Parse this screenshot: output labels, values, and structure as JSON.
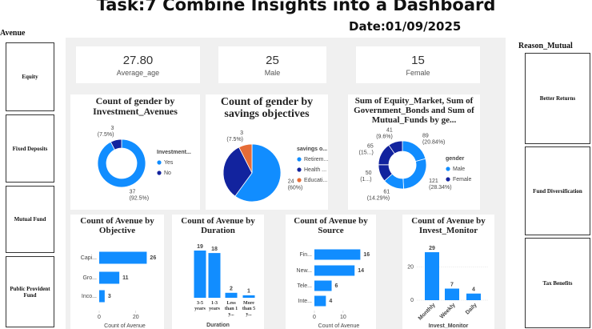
{
  "header": {
    "title": "Task:7 Combine Insights into a Dashboard",
    "date": "Date:01/09/2025"
  },
  "left_slicer": {
    "title": "Avenue",
    "items": [
      "Equity",
      "Fixed Deposits",
      "Mutual Fund",
      "Public Provident Fund"
    ]
  },
  "right_slicer": {
    "title": "Reason_Mutual",
    "items": [
      "Better Returns",
      "Fund Diversification",
      "Tax Benefits"
    ]
  },
  "cards": [
    {
      "value": "27.80",
      "label": "Average_age"
    },
    {
      "value": "25",
      "label": "Male"
    },
    {
      "value": "15",
      "label": "Female"
    }
  ],
  "chart_data": [
    {
      "type": "donut",
      "title": "Count of gender by Investment_Avenues",
      "values": [
        37,
        3
      ],
      "percent_labels": [
        "(92.5%)",
        "(7.5%)"
      ],
      "colors": [
        "#118dff",
        "#12239e"
      ],
      "legend": {
        "title": "Investment...",
        "items": [
          {
            "name": "Yes",
            "color": "#118dff"
          },
          {
            "name": "No",
            "color": "#12239e"
          }
        ]
      }
    },
    {
      "type": "pie",
      "title": "Count of gender by savings objectives",
      "values": [
        24,
        13,
        3
      ],
      "percent_labels": [
        "(60%)",
        null,
        "(7.5%)"
      ],
      "colors": [
        "#118dff",
        "#12239e",
        "#e66c37"
      ],
      "legend": {
        "title": "savings o...",
        "items": [
          {
            "name": "Retirem...",
            "color": "#118dff"
          },
          {
            "name": "Health ...",
            "color": "#12239e"
          },
          {
            "name": "Educati...",
            "color": "#e66c37"
          }
        ]
      }
    },
    {
      "type": "donut",
      "title": "Sum of Equity_Market, Sum of Government_Bonds and Sum of Mutual_Funds by ge...",
      "values": [
        89,
        121,
        61,
        50,
        65,
        41
      ],
      "percent_labels": [
        "(20.84%)",
        "(28.34%)",
        "(14.29%)",
        "(1...)",
        "(15...)",
        "(9.6%)"
      ],
      "colors": [
        "#118dff",
        "#118dff",
        "#118dff",
        "#12239e",
        "#12239e",
        "#12239e"
      ],
      "legend": {
        "title": "gender",
        "items": [
          {
            "name": "Male",
            "color": "#118dff"
          },
          {
            "name": "Female",
            "color": "#12239e"
          }
        ]
      }
    },
    {
      "type": "hbar",
      "title": "Count of Avenue by Objective",
      "categories": [
        "Capi...",
        "Gro...",
        "Inco..."
      ],
      "values": [
        26,
        11,
        3
      ],
      "color": "#118dff",
      "xlim": [
        0,
        28
      ],
      "xticks": [
        0,
        20
      ],
      "xlabel": "Count of Avenue"
    },
    {
      "type": "vbar",
      "title": "Count of Avenue by Duration",
      "categories": [
        "3-5 years",
        "1-3 years",
        "Less than 1 y...",
        "More than 5 y..."
      ],
      "values": [
        19,
        18,
        2,
        1
      ],
      "color": "#118dff",
      "ylim": [
        0,
        19
      ],
      "xlabel": "Duration"
    },
    {
      "type": "hbar",
      "title": "Count of Avenue by Source",
      "categories": [
        "Fin...",
        "New...",
        "Tele...",
        "Inte..."
      ],
      "values": [
        16,
        14,
        6,
        4
      ],
      "color": "#118dff",
      "xlim": [
        0,
        17
      ],
      "xticks": [
        0,
        10
      ],
      "xlabel": "Count of Avenue"
    },
    {
      "type": "vbar",
      "title": "Count of Avenue by Invest_Monitor",
      "categories": [
        "Monthly",
        "Weekly",
        "Daily"
      ],
      "values": [
        29,
        7,
        4
      ],
      "color": "#118dff",
      "ylim": [
        0,
        30
      ],
      "yticks": [
        0,
        20
      ],
      "grid": true,
      "xlabel": "Invest_Monitor"
    }
  ]
}
